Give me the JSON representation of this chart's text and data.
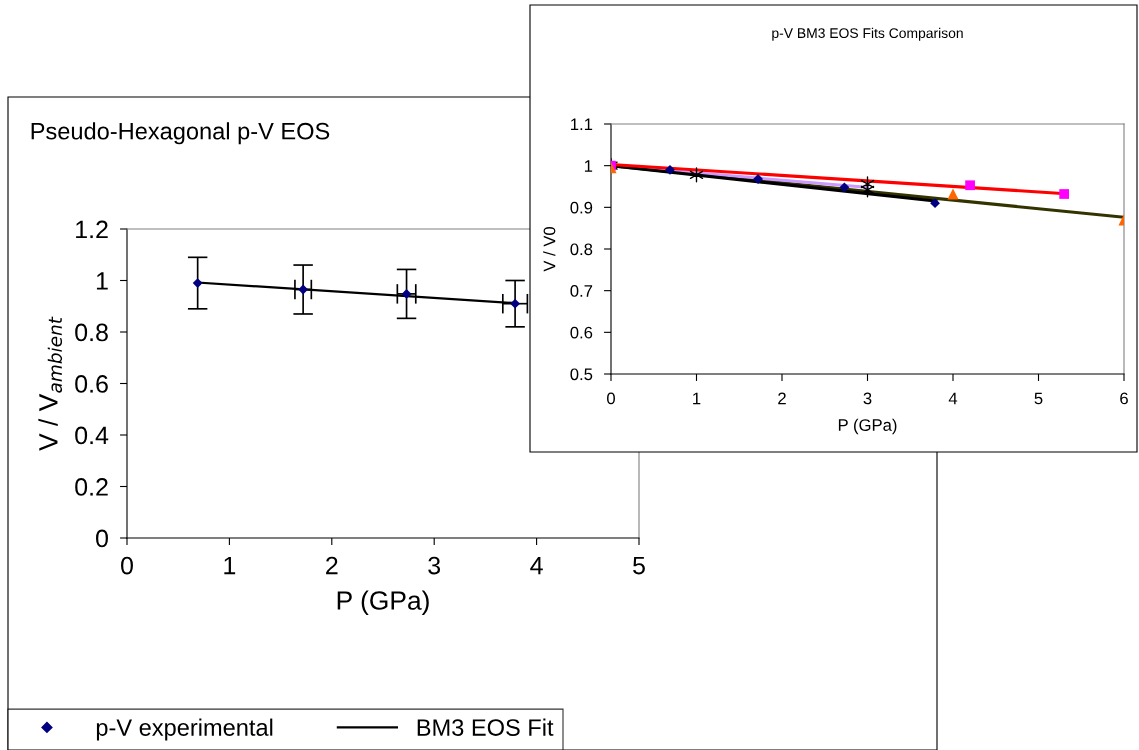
{
  "chart_data": [
    {
      "type": "scatter",
      "title": "Pseudo-Hexagonal p-V EOS",
      "xlabel": "P (GPa)",
      "ylabel": "V / V$_{ambient}$",
      "xlim": [
        0,
        5
      ],
      "xticks": [
        0,
        1,
        2,
        3,
        4,
        5
      ],
      "ylim": [
        0,
        1.2
      ],
      "yticks": [
        0,
        0.2,
        0.4,
        0.6,
        0.8,
        1,
        1.2
      ],
      "grid": false,
      "legend": "bottom",
      "series": [
        {
          "name": "p-V experimental",
          "marker": "diamond",
          "color": "#000080",
          "x": [
            0.69,
            1.72,
            2.73,
            3.79
          ],
          "values": [
            0.99,
            0.965,
            0.948,
            0.91
          ],
          "errors": [
            0.1,
            0.095,
            0.095,
            0.09
          ],
          "xerrors": [
            null,
            0.08,
            0.09,
            0.12
          ]
        },
        {
          "name": "BM3 EOS Fit",
          "type": "line",
          "color": "#000000",
          "x": [
            0.69,
            3.79
          ],
          "values": [
            0.992,
            0.912
          ]
        }
      ]
    },
    {
      "type": "scatter",
      "title": "p-V BM3 EOS Fits Comparison",
      "xlabel": "P (GPa)",
      "ylabel": "V / V0",
      "xlim": [
        0,
        6
      ],
      "xticks": [
        0,
        1,
        2,
        3,
        4,
        5,
        6
      ],
      "ylim": [
        0.5,
        1.1
      ],
      "yticks": [
        0.5,
        0.6,
        0.7,
        0.8,
        0.9,
        1,
        1.1
      ],
      "grid": false,
      "series": [
        {
          "type": "line",
          "color": "#333300",
          "x": [
            0,
            6
          ],
          "values": [
            1.0,
            0.876
          ]
        },
        {
          "type": "line",
          "color": "#cc99ff",
          "x": [
            0,
            3
          ],
          "values": [
            1.0,
            0.948
          ]
        },
        {
          "type": "line",
          "color": "#000000",
          "x": [
            0,
            3.8
          ],
          "values": [
            1.0,
            0.915
          ]
        },
        {
          "type": "line",
          "color": "#ff0000",
          "x": [
            0,
            5.3
          ],
          "values": [
            1.003,
            0.933
          ]
        },
        {
          "marker": "diamond",
          "color": "#000080",
          "x": [
            0.69,
            1.72,
            2.73,
            3.79
          ],
          "values": [
            0.99,
            0.968,
            0.948,
            0.91
          ]
        },
        {
          "marker": "cross",
          "color": "#000000",
          "x": [
            0,
            1,
            3,
            3
          ],
          "values": [
            1.0,
            0.978,
            0.956,
            0.942
          ]
        },
        {
          "marker": "square",
          "color": "#ff00ff",
          "x": [
            0,
            4.2,
            5.3
          ],
          "values": [
            1.0,
            0.953,
            0.932
          ]
        },
        {
          "marker": "triangle",
          "color": "#ff6600",
          "x": [
            0,
            4,
            6
          ],
          "values": [
            0.995,
            0.932,
            0.87
          ]
        }
      ]
    }
  ]
}
